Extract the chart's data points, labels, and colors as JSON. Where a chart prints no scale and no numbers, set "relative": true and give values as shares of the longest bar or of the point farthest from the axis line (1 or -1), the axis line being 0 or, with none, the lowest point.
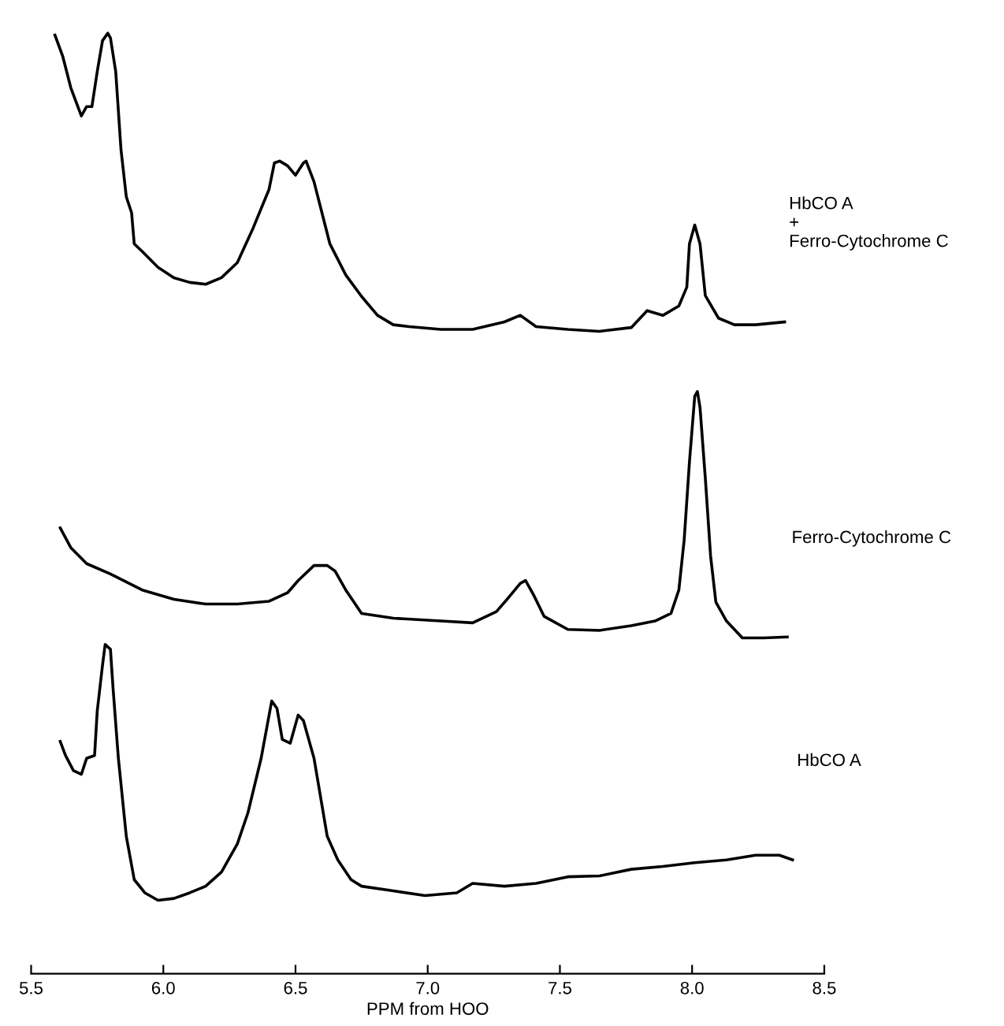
{
  "chart_data": {
    "type": "line",
    "relative": true,
    "xlabel": "PPM from HOO",
    "xlim": [
      5.5,
      8.5
    ],
    "xticks": [
      {
        "value": 5.5,
        "label": "5.5"
      },
      {
        "value": 6,
        "label": "6.0"
      },
      {
        "value": 6.5,
        "label": "6.5"
      },
      {
        "value": 7,
        "label": "7.0"
      },
      {
        "value": 7.5,
        "label": "7.5"
      },
      {
        "value": 8,
        "label": "8.0"
      },
      {
        "value": 8.5,
        "label": "8.5"
      }
    ],
    "tick_labels": "x",
    "grid": false,
    "legend": false,
    "marker": "none",
    "line_style": "solid",
    "series": [
      {
        "name": "HbCO A\n+\nFerro-Cytochrome C",
        "color": "#000000",
        "x": [
          5.59,
          5.62,
          5.65,
          5.69,
          5.71,
          5.73,
          5.75,
          5.77,
          5.79,
          5.8,
          5.82,
          5.84,
          5.86,
          5.88,
          5.89,
          5.92,
          5.98,
          6.04,
          6.1,
          6.16,
          6.22,
          6.28,
          6.34,
          6.4,
          6.42,
          6.44,
          6.47,
          6.5,
          6.53,
          6.54,
          6.57,
          6.6,
          6.63,
          6.69,
          6.75,
          6.81,
          6.87,
          6.93,
          7.05,
          7.17,
          7.29,
          7.35,
          7.41,
          7.53,
          7.65,
          7.77,
          7.83,
          7.89,
          7.95,
          7.98,
          7.99,
          8.01,
          8.03,
          8.05,
          8.1,
          8.16,
          8.24,
          8.35
        ],
        "values": [
          0.998,
          0.975,
          0.942,
          0.912,
          0.922,
          0.922,
          0.959,
          0.992,
          1.0,
          0.995,
          0.959,
          0.876,
          0.826,
          0.809,
          0.776,
          0.768,
          0.751,
          0.74,
          0.735,
          0.733,
          0.74,
          0.756,
          0.793,
          0.834,
          0.862,
          0.864,
          0.859,
          0.849,
          0.862,
          0.864,
          0.842,
          0.809,
          0.776,
          0.743,
          0.72,
          0.7,
          0.69,
          0.688,
          0.685,
          0.685,
          0.693,
          0.7,
          0.688,
          0.685,
          0.683,
          0.687,
          0.705,
          0.7,
          0.71,
          0.73,
          0.776,
          0.796,
          0.776,
          0.721,
          0.697,
          0.69,
          0.69,
          0.693
        ]
      },
      {
        "name": "Ferro-Cytochrome C",
        "color": "#000000",
        "x": [
          5.61,
          5.65,
          5.71,
          5.8,
          5.92,
          6.04,
          6.16,
          6.28,
          6.4,
          6.47,
          6.51,
          6.57,
          6.62,
          6.65,
          6.69,
          6.75,
          6.87,
          7.05,
          7.17,
          7.26,
          7.3,
          7.35,
          7.37,
          7.4,
          7.44,
          7.53,
          7.65,
          7.77,
          7.86,
          7.92,
          7.95,
          7.97,
          7.99,
          8.01,
          8.02,
          8.03,
          8.05,
          8.07,
          8.09,
          8.13,
          8.19,
          8.27,
          8.36
        ],
        "values": [
          0.474,
          0.453,
          0.436,
          0.425,
          0.408,
          0.398,
          0.393,
          0.393,
          0.396,
          0.405,
          0.418,
          0.434,
          0.434,
          0.428,
          0.408,
          0.383,
          0.378,
          0.375,
          0.373,
          0.385,
          0.398,
          0.415,
          0.418,
          0.403,
          0.38,
          0.366,
          0.365,
          0.37,
          0.375,
          0.383,
          0.408,
          0.461,
          0.544,
          0.614,
          0.619,
          0.602,
          0.527,
          0.444,
          0.395,
          0.375,
          0.357,
          0.357,
          0.358
        ]
      },
      {
        "name": "HbCO A",
        "color": "#000000",
        "x": [
          5.61,
          5.63,
          5.66,
          5.69,
          5.71,
          5.74,
          5.75,
          5.77,
          5.78,
          5.8,
          5.81,
          5.83,
          5.86,
          5.89,
          5.93,
          5.98,
          6.04,
          6.1,
          6.16,
          6.22,
          6.28,
          6.32,
          6.37,
          6.41,
          6.43,
          6.45,
          6.48,
          6.51,
          6.53,
          6.57,
          6.62,
          6.66,
          6.71,
          6.75,
          6.87,
          6.99,
          7.11,
          7.17,
          7.29,
          7.41,
          7.53,
          7.65,
          7.77,
          7.89,
          8.01,
          8.13,
          8.24,
          8.33,
          8.38
        ],
        "values": [
          0.247,
          0.232,
          0.216,
          0.212,
          0.229,
          0.232,
          0.279,
          0.328,
          0.35,
          0.345,
          0.303,
          0.229,
          0.146,
          0.1,
          0.086,
          0.078,
          0.08,
          0.086,
          0.093,
          0.108,
          0.138,
          0.171,
          0.229,
          0.29,
          0.282,
          0.249,
          0.245,
          0.275,
          0.269,
          0.229,
          0.146,
          0.121,
          0.1,
          0.093,
          0.088,
          0.083,
          0.086,
          0.096,
          0.093,
          0.096,
          0.103,
          0.104,
          0.111,
          0.114,
          0.118,
          0.121,
          0.126,
          0.126,
          0.121
        ]
      }
    ]
  }
}
